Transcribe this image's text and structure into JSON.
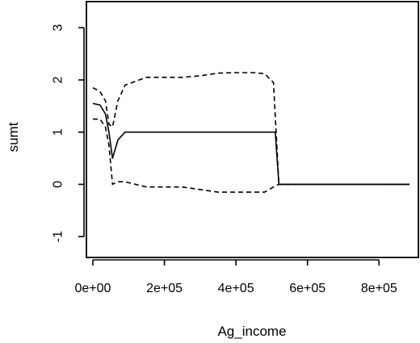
{
  "chart_data": {
    "type": "line",
    "title": "",
    "xlabel": "Ag_income",
    "ylabel": "sumt",
    "xlim": [
      -18000,
      910000
    ],
    "ylim": [
      -1.4,
      3.5
    ],
    "x_ticks": [
      0,
      200000,
      400000,
      600000,
      800000
    ],
    "x_tick_labels": [
      "0e+00",
      "2e+05",
      "4e+05",
      "6e+05",
      "8e+05"
    ],
    "y_ticks": [
      -1,
      0,
      1,
      2,
      3
    ],
    "y_tick_labels": [
      "-1",
      "0",
      "1",
      "2",
      "3"
    ],
    "grid": false,
    "legend": "none",
    "series": [
      {
        "line_style": "solid",
        "x": [
          0,
          20000,
          35000,
          45000,
          55000,
          70000,
          90000,
          500000,
          510000,
          520000,
          885000
        ],
        "y": [
          1.55,
          1.52,
          1.35,
          1.0,
          0.5,
          0.85,
          1.0,
          1.0,
          1.0,
          0.0,
          0.0
        ]
      },
      {
        "line_style": "dashed",
        "x": [
          0,
          20000,
          35000,
          45000,
          55000,
          70000,
          90000,
          150000,
          250000,
          300000,
          350000,
          400000,
          450000,
          480000,
          505000,
          520000,
          885000
        ],
        "y": [
          1.85,
          1.78,
          1.6,
          1.15,
          1.1,
          1.6,
          1.9,
          2.05,
          2.05,
          2.08,
          2.13,
          2.14,
          2.14,
          2.12,
          1.95,
          0.0,
          0.0
        ]
      },
      {
        "line_style": "dashed",
        "x": [
          0,
          20000,
          35000,
          45000,
          55000,
          70000,
          90000,
          150000,
          250000,
          300000,
          350000,
          400000,
          450000,
          480000,
          505000,
          520000,
          885000
        ],
        "y": [
          1.25,
          1.25,
          1.1,
          0.75,
          0.0,
          0.05,
          0.05,
          -0.05,
          -0.05,
          -0.1,
          -0.15,
          -0.15,
          -0.15,
          -0.15,
          -0.05,
          0.0,
          0.0
        ]
      }
    ]
  }
}
